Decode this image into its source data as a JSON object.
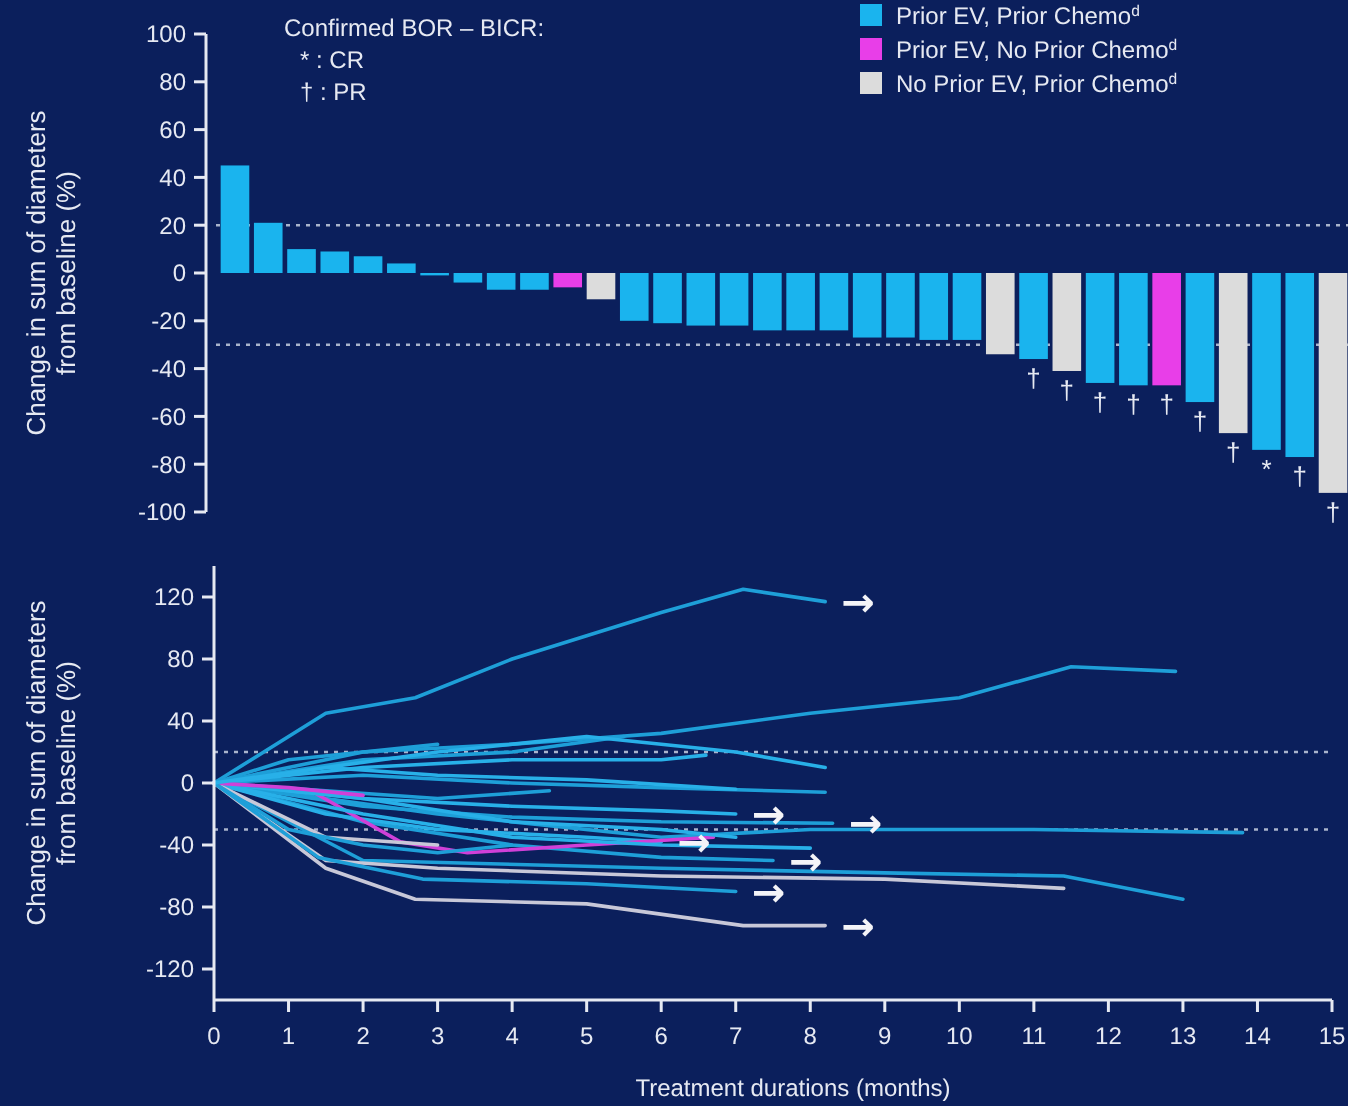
{
  "chart_data": [
    {
      "type": "bar",
      "ylabel": "Change in sum of diameters from baseline (%)",
      "legend": "top right",
      "categories": [
        null,
        null,
        null,
        null,
        null,
        null,
        null,
        null,
        null,
        null,
        null,
        null,
        null,
        null,
        null,
        null,
        null,
        null,
        null,
        null,
        null,
        null,
        null,
        null,
        null,
        null,
        null,
        null,
        null,
        null,
        null,
        null,
        null,
        null
      ],
      "series": [
        {
          "name": "Prior EV, Prior Chemo$^{d}$",
          "color": "#1ab4ee",
          "values": [
            45,
            21,
            10,
            9,
            7,
            4,
            -1,
            -4,
            -7,
            -7,
            null,
            null,
            -20,
            -21,
            -22,
            -22,
            -24,
            -24,
            -24,
            -27,
            -27,
            -28,
            -28,
            null,
            -36,
            null,
            -46,
            -47,
            null,
            -54,
            null,
            -74,
            -77,
            null
          ],
          "value_labels": [
            null,
            null,
            null,
            null,
            null,
            null,
            null,
            null,
            null,
            null,
            null,
            null,
            null,
            null,
            null,
            null,
            null,
            null,
            null,
            null,
            null,
            null,
            null,
            null,
            "†",
            null,
            "†",
            "†",
            null,
            "†",
            null,
            "*",
            "†",
            null
          ]
        },
        {
          "name": "Prior EV, No Prior Chemo$^{d}$",
          "color": "#e83ee8",
          "values": [
            null,
            null,
            null,
            null,
            null,
            null,
            null,
            null,
            null,
            null,
            -6,
            null,
            null,
            null,
            null,
            null,
            null,
            null,
            null,
            null,
            null,
            null,
            null,
            null,
            null,
            null,
            null,
            null,
            -47,
            null,
            null,
            null,
            null,
            null
          ],
          "value_labels": [
            null,
            null,
            null,
            null,
            null,
            null,
            null,
            null,
            null,
            null,
            null,
            null,
            null,
            null,
            null,
            null,
            null,
            null,
            null,
            null,
            null,
            null,
            null,
            null,
            null,
            null,
            null,
            null,
            "†",
            null,
            null,
            null,
            null,
            null
          ]
        },
        {
          "name": "No Prior EV, Prior Chemo$^{d}$",
          "color": "#dcdcdc",
          "values": [
            null,
            null,
            null,
            null,
            null,
            null,
            null,
            null,
            null,
            null,
            null,
            -11,
            null,
            null,
            null,
            null,
            null,
            null,
            null,
            null,
            null,
            null,
            null,
            -34,
            null,
            -41,
            null,
            null,
            null,
            null,
            -67,
            null,
            null,
            -92
          ],
          "value_labels": [
            null,
            null,
            null,
            null,
            null,
            null,
            null,
            null,
            null,
            null,
            null,
            null,
            null,
            null,
            null,
            null,
            null,
            null,
            null,
            null,
            null,
            null,
            null,
            null,
            null,
            "†",
            null,
            null,
            null,
            null,
            "†",
            null,
            null,
            "†"
          ]
        }
      ],
      "ylim": [
        -100,
        100
      ],
      "yticks": [
        100,
        80,
        60,
        40,
        20,
        0,
        -20,
        -40,
        -60,
        -80,
        -100
      ],
      "ref_lines": [
        {
          "axis": "y",
          "value": 20,
          "color": "#aab4cc",
          "line_style": "dotted"
        },
        {
          "axis": "y",
          "value": -30,
          "color": "#aab4cc",
          "line_style": "dotted"
        }
      ],
      "annotations": [
        "Confirmed BOR – BICR:",
        "* : CR",
        "† : PR"
      ]
    },
    {
      "type": "line",
      "xlabel": "Treatment durations (months)",
      "ylabel": "Change in sum of diameters from baseline (%)",
      "xlim": [
        0,
        15
      ],
      "xticks": [
        0,
        1,
        2,
        3,
        4,
        5,
        6,
        7,
        8,
        9,
        10,
        11,
        12,
        13,
        14,
        15
      ],
      "ylim": [
        -140,
        140
      ],
      "yticks": [
        120,
        80,
        40,
        0,
        -40,
        -80,
        -120
      ],
      "series": [
        {
          "color": "#1e9fd8",
          "x": [
            0,
            1.5,
            2.7,
            4,
            5,
            6,
            7.1,
            8.2
          ],
          "values": [
            0,
            45,
            55,
            80,
            95,
            110,
            125,
            117
          ]
        },
        {
          "color": "#1e9fd8",
          "x": [
            0,
            2,
            4,
            6,
            8,
            10,
            11.5,
            12.9
          ],
          "values": [
            0,
            20,
            25,
            32,
            45,
            55,
            75,
            72
          ]
        },
        {
          "color": "#1e9fd8",
          "x": [
            0,
            3,
            6,
            8,
            11,
            13.8
          ],
          "values": [
            0,
            -20,
            -35,
            -30,
            -30,
            -32
          ]
        },
        {
          "color": "#1e9fd8",
          "x": [
            0,
            2,
            6,
            9,
            11.4,
            13
          ],
          "values": [
            0,
            -50,
            -55,
            -58,
            -60,
            -75
          ]
        },
        {
          "color": "#c8c8d8",
          "x": [
            0,
            1.5,
            3,
            6,
            9,
            11.4
          ],
          "values": [
            0,
            -50,
            -55,
            -60,
            -62,
            -68
          ]
        },
        {
          "color": "#c8c8d8",
          "x": [
            0,
            1.5,
            2.7,
            5,
            7.1,
            8.2
          ],
          "values": [
            0,
            -55,
            -75,
            -78,
            -92,
            -92
          ]
        },
        {
          "color": "#1e9fd8",
          "x": [
            0,
            1.4,
            2.8,
            5,
            7
          ],
          "values": [
            0,
            -48,
            -62,
            -65,
            -70
          ]
        },
        {
          "color": "#1e9fd8",
          "x": [
            0,
            2,
            4,
            6,
            7.5
          ],
          "values": [
            0,
            -25,
            -40,
            -48,
            -50
          ]
        },
        {
          "color": "#28b0e8",
          "x": [
            0,
            2,
            4,
            6,
            7
          ],
          "values": [
            0,
            -10,
            -15,
            -18,
            -20
          ]
        },
        {
          "color": "#1e9fd8",
          "x": [
            0,
            2,
            4,
            6,
            8.3
          ],
          "values": [
            0,
            -15,
            -22,
            -25,
            -26
          ]
        },
        {
          "color": "#28b0e8",
          "x": [
            0,
            1.5,
            3,
            5,
            6
          ],
          "values": [
            0,
            -20,
            -30,
            -35,
            -38
          ]
        },
        {
          "color": "#d040d8",
          "x": [
            0,
            1.3,
            2.5,
            3.4,
            5,
            6.7
          ],
          "values": [
            0,
            -5,
            -38,
            -45,
            -40,
            -35
          ]
        },
        {
          "color": "#1e9fd8",
          "x": [
            0,
            2,
            4,
            6,
            8.2
          ],
          "values": [
            0,
            5,
            0,
            -3,
            -6
          ]
        },
        {
          "color": "#28b0e8",
          "x": [
            0,
            1.5,
            3,
            5,
            7
          ],
          "values": [
            0,
            10,
            5,
            2,
            -4
          ]
        },
        {
          "color": "#1e9fd8",
          "x": [
            0,
            2,
            4,
            5.5
          ],
          "values": [
            0,
            15,
            20,
            30
          ]
        },
        {
          "color": "#28b0e8",
          "x": [
            0,
            2,
            4,
            6,
            6.6
          ],
          "values": [
            0,
            10,
            15,
            15,
            18
          ]
        },
        {
          "color": "#1e9fd8",
          "x": [
            0,
            1,
            2,
            3
          ],
          "values": [
            0,
            15,
            20,
            25
          ]
        },
        {
          "color": "#28b0e8",
          "x": [
            0,
            2,
            4,
            6,
            7
          ],
          "values": [
            0,
            -10,
            -25,
            -30,
            -35
          ]
        },
        {
          "color": "#1e9fd8",
          "x": [
            0,
            1.5,
            3,
            4.5
          ],
          "values": [
            0,
            -5,
            -10,
            -5
          ]
        },
        {
          "color": "#28b0e8",
          "x": [
            0,
            2,
            4,
            6,
            8
          ],
          "values": [
            0,
            -20,
            -35,
            -40,
            -42
          ]
        },
        {
          "color": "#c8c8d8",
          "x": [
            0,
            1.5,
            3
          ],
          "values": [
            0,
            -35,
            -40
          ]
        },
        {
          "color": "#d040d8",
          "x": [
            0,
            1,
            2
          ],
          "values": [
            0,
            -3,
            -8
          ]
        },
        {
          "color": "#1e9fd8",
          "x": [
            0,
            1,
            2,
            3,
            4
          ],
          "values": [
            0,
            -30,
            -40,
            -45,
            -40
          ]
        },
        {
          "color": "#28b0e8",
          "x": [
            0,
            3,
            5,
            7,
            8.2
          ],
          "values": [
            0,
            20,
            30,
            20,
            10
          ]
        }
      ],
      "ref_lines": [
        {
          "axis": "y",
          "value": 20,
          "color": "#aab4cc",
          "line_style": "dotted"
        },
        {
          "axis": "y",
          "value": -30,
          "color": "#aab4cc",
          "line_style": "dotted"
        }
      ],
      "annotations": [
        {
          "text": "→",
          "x": 8.2,
          "y": 117
        },
        {
          "text": "→",
          "x": 8.2,
          "y": -92
        },
        {
          "text": "→",
          "x": 7,
          "y": -70
        },
        {
          "text": "→",
          "x": 7.5,
          "y": -50
        },
        {
          "text": "→",
          "x": 7,
          "y": -20
        },
        {
          "text": "→",
          "x": 8.3,
          "y": -26
        },
        {
          "text": "→",
          "x": 6,
          "y": -38
        }
      ]
    }
  ]
}
